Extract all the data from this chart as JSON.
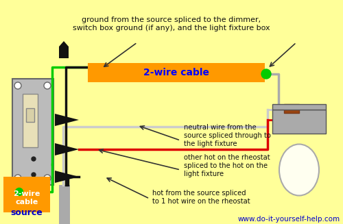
{
  "bg_color": "#FFFF99",
  "title_text": "ground from the source spliced to the dimmer,\nswitch box ground (if any), and the light fixture box",
  "cable_label": "2-wire cable",
  "cable_color": "#FF9900",
  "cable_text_color": "#0000FF",
  "source_box_color": "#FF9900",
  "website": "www.do-it-yourself-help.com",
  "website_color": "#0000CC",
  "green": "#00CC00",
  "black": "#111111",
  "red_wire": "#DD0000",
  "neutral_text": "neutral wire from the\nsource spliced through to\nthe light fixture",
  "other_hot_text": "other hot on the rheostat\nspliced to the hot on the\nlight fixture",
  "bottom_text": "hot from the source spliced\nto 1 hot wire on the rheostat"
}
